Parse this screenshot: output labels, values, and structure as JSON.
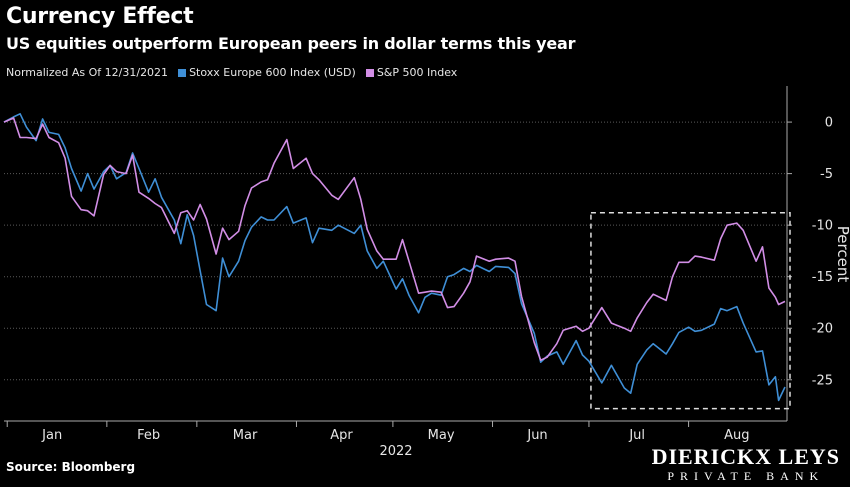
{
  "header": {
    "title": "Currency Effect",
    "subtitle": "US equities outperform European peers in dollar terms this year"
  },
  "legend": {
    "note": "Normalized As Of 12/31/2021",
    "items": [
      {
        "label": "Stoxx Europe 600 Index (USD)",
        "color": "#3f8fd6"
      },
      {
        "label": "S&P 500 Index",
        "color": "#d28ee6"
      }
    ]
  },
  "footer": {
    "source": "Source: Bloomberg",
    "brand_name": "DIERICKX LEYS",
    "brand_sub": "PRIVATE BANK"
  },
  "chart_data": {
    "type": "line",
    "xlabel": "2022",
    "ylabel": "Percent",
    "x_range": [
      "2021-12-31",
      "2022-08-31"
    ],
    "ylim": [
      -29,
      3.5
    ],
    "y_ticks": [
      0,
      -5,
      -10,
      -15,
      -20,
      -25
    ],
    "x_tick_labels": [
      {
        "label": "Jan",
        "date": "2022-01-15"
      },
      {
        "label": "Feb",
        "date": "2022-02-14"
      },
      {
        "label": "Mar",
        "date": "2022-03-16"
      },
      {
        "label": "Apr",
        "date": "2022-04-15"
      },
      {
        "label": "May",
        "date": "2022-05-16"
      },
      {
        "label": "Jun",
        "date": "2022-06-15"
      },
      {
        "label": "Jul",
        "date": "2022-07-16"
      },
      {
        "label": "Aug",
        "date": "2022-08-16"
      }
    ],
    "month_boundaries": [
      "2022-01-01",
      "2022-02-01",
      "2022-03-01",
      "2022-04-01",
      "2022-05-01",
      "2022-06-01",
      "2022-07-01",
      "2022-08-01",
      "2022-09-01"
    ],
    "annotation_box": {
      "x": [
        "2022-07-01",
        "2022-08-31"
      ],
      "y": [
        -8.8,
        -27.8
      ],
      "style": "dashed",
      "color": "#dddddd"
    },
    "grid": "horizontal-dotted",
    "series": [
      {
        "name": "Stoxx Europe 600 Index (USD)",
        "color": "#3f8fd6",
        "points": [
          [
            "2021-12-31",
            0
          ],
          [
            "2022-01-03",
            0.5
          ],
          [
            "2022-01-05",
            0.8
          ],
          [
            "2022-01-07",
            -0.5
          ],
          [
            "2022-01-10",
            -1.8
          ],
          [
            "2022-01-12",
            0.3
          ],
          [
            "2022-01-14",
            -1
          ],
          [
            "2022-01-17",
            -1.2
          ],
          [
            "2022-01-19",
            -2.5
          ],
          [
            "2022-01-21",
            -4.5
          ],
          [
            "2022-01-24",
            -6.7
          ],
          [
            "2022-01-26",
            -5
          ],
          [
            "2022-01-28",
            -6.5
          ],
          [
            "2022-01-31",
            -4.8
          ],
          [
            "2022-02-02",
            -4.2
          ],
          [
            "2022-02-04",
            -5.5
          ],
          [
            "2022-02-07",
            -4.9
          ],
          [
            "2022-02-09",
            -3
          ],
          [
            "2022-02-11",
            -4.5
          ],
          [
            "2022-02-14",
            -6.8
          ],
          [
            "2022-02-16",
            -5.5
          ],
          [
            "2022-02-18",
            -7.3
          ],
          [
            "2022-02-22",
            -9.5
          ],
          [
            "2022-02-24",
            -11.8
          ],
          [
            "2022-02-26",
            -9
          ],
          [
            "2022-02-28",
            -11
          ],
          [
            "2022-03-02",
            -14.4
          ],
          [
            "2022-03-04",
            -17.7
          ],
          [
            "2022-03-07",
            -18.3
          ],
          [
            "2022-03-09",
            -13.2
          ],
          [
            "2022-03-11",
            -15
          ],
          [
            "2022-03-14",
            -13.5
          ],
          [
            "2022-03-16",
            -11.5
          ],
          [
            "2022-03-18",
            -10.2
          ],
          [
            "2022-03-21",
            -9.2
          ],
          [
            "2022-03-23",
            -9.5
          ],
          [
            "2022-03-25",
            -9.5
          ],
          [
            "2022-03-29",
            -8.2
          ],
          [
            "2022-03-31",
            -9.8
          ],
          [
            "2022-04-04",
            -9.3
          ],
          [
            "2022-04-06",
            -11.7
          ],
          [
            "2022-04-08",
            -10.3
          ],
          [
            "2022-04-12",
            -10.5
          ],
          [
            "2022-04-14",
            -10
          ],
          [
            "2022-04-19",
            -10.8
          ],
          [
            "2022-04-21",
            -10
          ],
          [
            "2022-04-23",
            -12.5
          ],
          [
            "2022-04-26",
            -14.2
          ],
          [
            "2022-04-28",
            -13.5
          ],
          [
            "2022-05-02",
            -16.2
          ],
          [
            "2022-05-04",
            -15.2
          ],
          [
            "2022-05-06",
            -16.8
          ],
          [
            "2022-05-09",
            -18.5
          ],
          [
            "2022-05-11",
            -17
          ],
          [
            "2022-05-13",
            -16.6
          ],
          [
            "2022-05-16",
            -16.8
          ],
          [
            "2022-05-18",
            -15
          ],
          [
            "2022-05-20",
            -14.8
          ],
          [
            "2022-05-23",
            -14.2
          ],
          [
            "2022-05-25",
            -14.5
          ],
          [
            "2022-05-27",
            -13.9
          ],
          [
            "2022-05-31",
            -14.5
          ],
          [
            "2022-06-02",
            -14
          ],
          [
            "2022-06-06",
            -14.1
          ],
          [
            "2022-06-08",
            -14.7
          ],
          [
            "2022-06-10",
            -17.6
          ],
          [
            "2022-06-14",
            -20.5
          ],
          [
            "2022-06-16",
            -23.3
          ],
          [
            "2022-06-18",
            -22.7
          ],
          [
            "2022-06-21",
            -22.3
          ],
          [
            "2022-06-23",
            -23.5
          ],
          [
            "2022-06-27",
            -21.2
          ],
          [
            "2022-06-29",
            -22.6
          ],
          [
            "2022-07-01",
            -23.2
          ],
          [
            "2022-07-05",
            -25.3
          ],
          [
            "2022-07-08",
            -23.6
          ],
          [
            "2022-07-12",
            -25.8
          ],
          [
            "2022-07-14",
            -26.3
          ],
          [
            "2022-07-16",
            -23.5
          ],
          [
            "2022-07-19",
            -22.1
          ],
          [
            "2022-07-21",
            -21.5
          ],
          [
            "2022-07-25",
            -22.5
          ],
          [
            "2022-07-27",
            -21.5
          ],
          [
            "2022-07-29",
            -20.4
          ],
          [
            "2022-08-01",
            -19.9
          ],
          [
            "2022-08-03",
            -20.3
          ],
          [
            "2022-08-05",
            -20.2
          ],
          [
            "2022-08-09",
            -19.6
          ],
          [
            "2022-08-11",
            -18.1
          ],
          [
            "2022-08-13",
            -18.3
          ],
          [
            "2022-08-16",
            -17.9
          ],
          [
            "2022-08-18",
            -19.5
          ],
          [
            "2022-08-22",
            -22.3
          ],
          [
            "2022-08-24",
            -22.2
          ],
          [
            "2022-08-26",
            -25.5
          ],
          [
            "2022-08-28",
            -24.7
          ],
          [
            "2022-08-29",
            -27
          ],
          [
            "2022-08-31",
            -25.7
          ]
        ]
      },
      {
        "name": "S&P 500 Index",
        "color": "#d28ee6",
        "points": [
          [
            "2021-12-31",
            0
          ],
          [
            "2022-01-03",
            0.4
          ],
          [
            "2022-01-05",
            -1.5
          ],
          [
            "2022-01-07",
            -1.5
          ],
          [
            "2022-01-10",
            -1.6
          ],
          [
            "2022-01-12",
            -0.2
          ],
          [
            "2022-01-14",
            -1.5
          ],
          [
            "2022-01-17",
            -2
          ],
          [
            "2022-01-19",
            -3.5
          ],
          [
            "2022-01-21",
            -7.2
          ],
          [
            "2022-01-24",
            -8.5
          ],
          [
            "2022-01-26",
            -8.6
          ],
          [
            "2022-01-28",
            -9.1
          ],
          [
            "2022-01-31",
            -5.1
          ],
          [
            "2022-02-02",
            -4.2
          ],
          [
            "2022-02-04",
            -4.8
          ],
          [
            "2022-02-07",
            -5
          ],
          [
            "2022-02-09",
            -3.2
          ],
          [
            "2022-02-11",
            -6.8
          ],
          [
            "2022-02-14",
            -7.4
          ],
          [
            "2022-02-16",
            -7.9
          ],
          [
            "2022-02-18",
            -8.3
          ],
          [
            "2022-02-22",
            -10.8
          ],
          [
            "2022-02-24",
            -8.8
          ],
          [
            "2022-02-26",
            -8.6
          ],
          [
            "2022-02-28",
            -9.5
          ],
          [
            "2022-03-02",
            -8
          ],
          [
            "2022-03-04",
            -9.4
          ],
          [
            "2022-03-07",
            -12.8
          ],
          [
            "2022-03-09",
            -10.3
          ],
          [
            "2022-03-11",
            -11.4
          ],
          [
            "2022-03-14",
            -10.6
          ],
          [
            "2022-03-16",
            -8.1
          ],
          [
            "2022-03-18",
            -6.4
          ],
          [
            "2022-03-21",
            -5.8
          ],
          [
            "2022-03-23",
            -5.6
          ],
          [
            "2022-03-25",
            -4
          ],
          [
            "2022-03-29",
            -1.7
          ],
          [
            "2022-03-31",
            -4.5
          ],
          [
            "2022-04-04",
            -3.5
          ],
          [
            "2022-04-06",
            -5
          ],
          [
            "2022-04-08",
            -5.6
          ],
          [
            "2022-04-12",
            -7.1
          ],
          [
            "2022-04-14",
            -7.5
          ],
          [
            "2022-04-19",
            -5.4
          ],
          [
            "2022-04-21",
            -7.5
          ],
          [
            "2022-04-23",
            -10.4
          ],
          [
            "2022-04-26",
            -12.5
          ],
          [
            "2022-04-28",
            -13.3
          ],
          [
            "2022-05-02",
            -13.3
          ],
          [
            "2022-05-04",
            -11.4
          ],
          [
            "2022-05-06",
            -13.5
          ],
          [
            "2022-05-09",
            -16.6
          ],
          [
            "2022-05-11",
            -16.5
          ],
          [
            "2022-05-13",
            -16.4
          ],
          [
            "2022-05-16",
            -16.5
          ],
          [
            "2022-05-18",
            -18
          ],
          [
            "2022-05-20",
            -17.9
          ],
          [
            "2022-05-23",
            -16.6
          ],
          [
            "2022-05-25",
            -15.5
          ],
          [
            "2022-05-27",
            -13
          ],
          [
            "2022-05-31",
            -13.5
          ],
          [
            "2022-06-02",
            -13.3
          ],
          [
            "2022-06-06",
            -13.2
          ],
          [
            "2022-06-08",
            -13.5
          ],
          [
            "2022-06-10",
            -16.9
          ],
          [
            "2022-06-14",
            -21.4
          ],
          [
            "2022-06-16",
            -23.1
          ],
          [
            "2022-06-18",
            -22.8
          ],
          [
            "2022-06-21",
            -21.5
          ],
          [
            "2022-06-23",
            -20.2
          ],
          [
            "2022-06-27",
            -19.8
          ],
          [
            "2022-06-29",
            -20.3
          ],
          [
            "2022-07-01",
            -20
          ],
          [
            "2022-07-05",
            -18
          ],
          [
            "2022-07-08",
            -19.5
          ],
          [
            "2022-07-12",
            -20
          ],
          [
            "2022-07-14",
            -20.3
          ],
          [
            "2022-07-16",
            -19
          ],
          [
            "2022-07-19",
            -17.5
          ],
          [
            "2022-07-21",
            -16.7
          ],
          [
            "2022-07-25",
            -17.3
          ],
          [
            "2022-07-27",
            -15
          ],
          [
            "2022-07-29",
            -13.6
          ],
          [
            "2022-08-01",
            -13.6
          ],
          [
            "2022-08-03",
            -13
          ],
          [
            "2022-08-05",
            -13.1
          ],
          [
            "2022-08-09",
            -13.4
          ],
          [
            "2022-08-11",
            -11.3
          ],
          [
            "2022-08-13",
            -10
          ],
          [
            "2022-08-16",
            -9.8
          ],
          [
            "2022-08-18",
            -10.5
          ],
          [
            "2022-08-22",
            -13.5
          ],
          [
            "2022-08-24",
            -12.1
          ],
          [
            "2022-08-26",
            -16.1
          ],
          [
            "2022-08-28",
            -17
          ],
          [
            "2022-08-29",
            -17.7
          ],
          [
            "2022-08-31",
            -17.4
          ]
        ]
      }
    ]
  }
}
